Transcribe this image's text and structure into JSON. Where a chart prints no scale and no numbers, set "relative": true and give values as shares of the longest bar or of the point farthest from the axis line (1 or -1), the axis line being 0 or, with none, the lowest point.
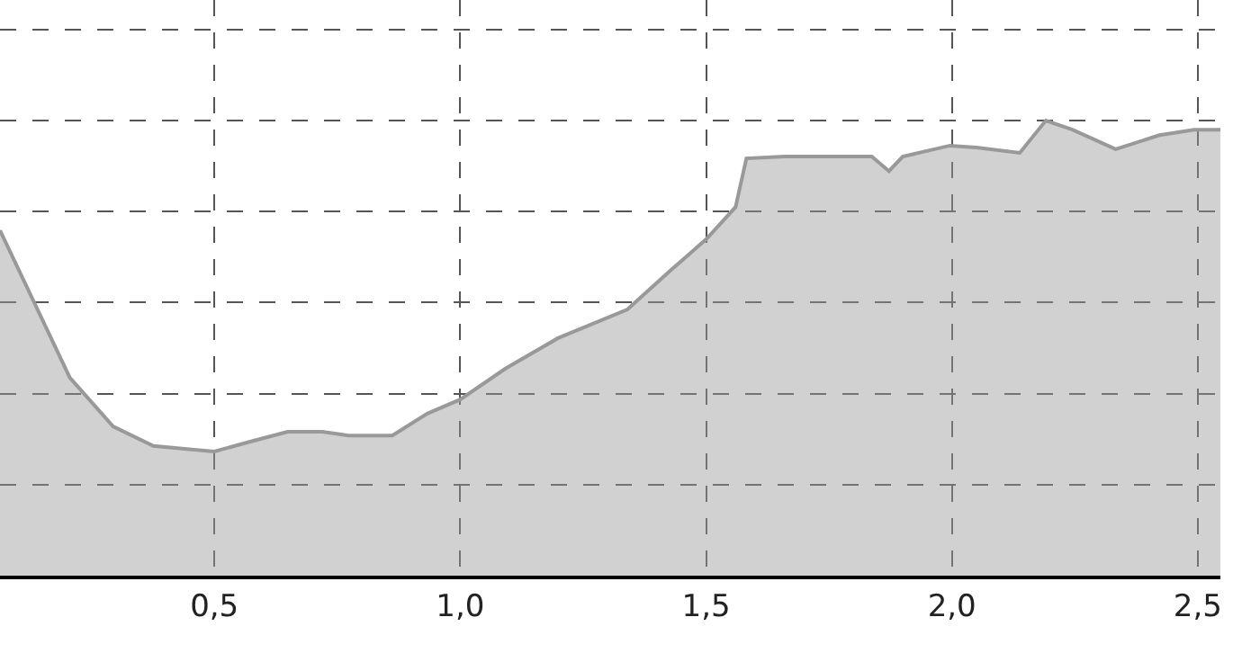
{
  "chart_data": {
    "type": "area",
    "relative": true,
    "color": "#999999",
    "grid": true,
    "line_style": "solid",
    "x": [
      0.064,
      0.206,
      0.294,
      0.376,
      0.454,
      0.5,
      0.578,
      0.649,
      0.72,
      0.773,
      0.862,
      0.933,
      1.0,
      1.092,
      1.199,
      1.34,
      1.429,
      1.5,
      1.56,
      1.582,
      1.66,
      1.837,
      1.872,
      1.9,
      1.996,
      2.05,
      2.138,
      2.191,
      2.245,
      2.333,
      2.422,
      2.493,
      2.546
    ],
    "values": [
      0.759,
      0.435,
      0.328,
      0.285,
      0.277,
      0.273,
      0.296,
      0.316,
      0.316,
      0.308,
      0.308,
      0.356,
      0.387,
      0.455,
      0.522,
      0.585,
      0.672,
      0.739,
      0.81,
      0.917,
      0.921,
      0.921,
      0.889,
      0.921,
      0.945,
      0.941,
      0.929,
      1.0,
      0.98,
      0.937,
      0.968,
      0.98,
      0.98
    ],
    "xlim": [
      0.064,
      2.546
    ],
    "xticks": [
      {
        "value": 0.5,
        "label": "0,5"
      },
      {
        "value": 1.0,
        "label": "1,0"
      },
      {
        "value": 1.5,
        "label": "1,5"
      },
      {
        "value": 2.0,
        "label": "2,0"
      },
      {
        "value": 2.5,
        "label": "2,5"
      }
    ]
  }
}
